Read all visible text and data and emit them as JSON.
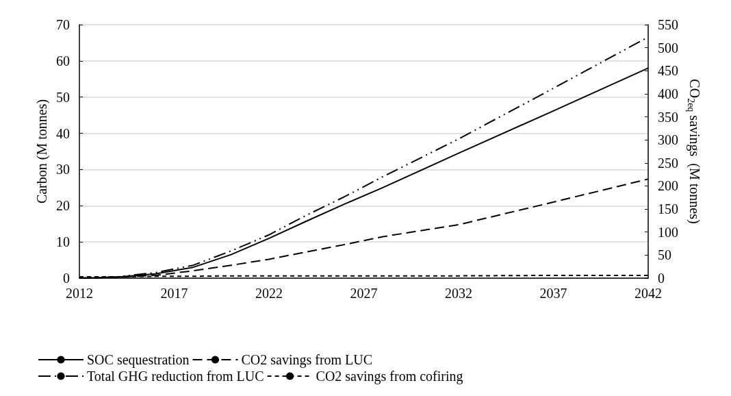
{
  "chart_data": {
    "type": "line",
    "ylabel": "Carbon (M tonnes)",
    "y2label": "CO$_{2eq}$ savings  (M tonnes)",
    "x": [
      2012,
      2014,
      2016,
      2018,
      2020,
      2022,
      2024,
      2026,
      2028,
      2032,
      2037,
      2042
    ],
    "xlim": [
      2012,
      2042
    ],
    "xticks": [
      2012,
      2017,
      2022,
      2027,
      2032,
      2037,
      2042
    ],
    "ylim": [
      0,
      70
    ],
    "yticks": [
      0,
      10,
      20,
      30,
      40,
      50,
      60,
      70
    ],
    "y2lim": [
      0,
      550
    ],
    "y2ticks": [
      0,
      50,
      100,
      150,
      200,
      250,
      300,
      350,
      400,
      450,
      500,
      550
    ],
    "grid": "y",
    "legend": "bottom",
    "marker": "none",
    "series": [
      {
        "name": "SOC sequestration",
        "color": "#000000",
        "line_style": "solid",
        "values": [
          0,
          0.3,
          1.2,
          3,
          6.5,
          11,
          15.8,
          20.5,
          25,
          34.5,
          46.2,
          58
        ]
      },
      {
        "name": "CO2 savings from LUC",
        "color": "#000000",
        "line_style": "dashed",
        "axis": "y2",
        "values": [
          0,
          2,
          6,
          16,
          28,
          41,
          57,
          73,
          90,
          116,
          165,
          215
        ]
      },
      {
        "name": "Total GHG reduction from LUC",
        "color": "#000000",
        "line_style": "dashdotdot",
        "axis": "y2",
        "values": [
          0,
          3,
          12,
          28,
          59,
          94,
          137,
          177,
          220,
          302,
          412,
          523
        ]
      },
      {
        "name": "CO2 savings from cofiring",
        "color": "#000000",
        "line_style": "dotted",
        "axis": "y2",
        "values": [
          3,
          3,
          4,
          4,
          5,
          5,
          5,
          5,
          5,
          5,
          6,
          6
        ]
      }
    ]
  }
}
